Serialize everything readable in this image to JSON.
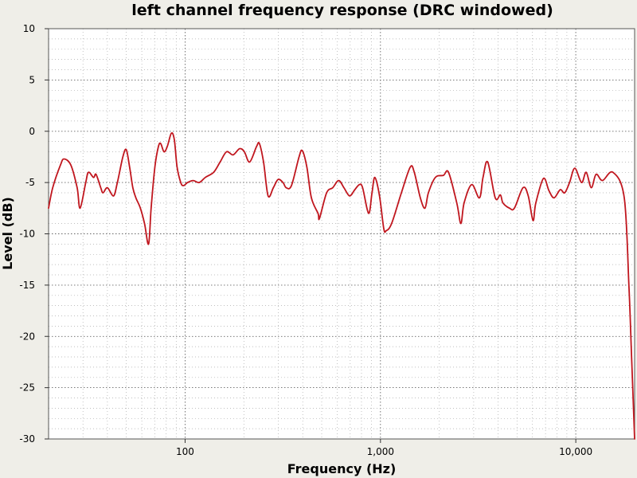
{
  "chart_data": {
    "type": "line",
    "title": "left channel frequency response (DRC windowed)",
    "xlabel": "Frequency (Hz)",
    "ylabel": "Level (dB)",
    "x_scale": "log",
    "xlim": [
      20,
      20000
    ],
    "ylim": [
      -30,
      10
    ],
    "grid": true,
    "x_ticks": [
      {
        "value": 100,
        "label": "100"
      },
      {
        "value": 1000,
        "label": "1,000"
      },
      {
        "value": 10000,
        "label": "10,000"
      }
    ],
    "y_ticks": [
      {
        "value": 10,
        "label": "10"
      },
      {
        "value": 5,
        "label": "5"
      },
      {
        "value": 0,
        "label": "0"
      },
      {
        "value": -5,
        "label": "-5"
      },
      {
        "value": -10,
        "label": "-10"
      },
      {
        "value": -15,
        "label": "-15"
      },
      {
        "value": -20,
        "label": "-20"
      },
      {
        "value": -25,
        "label": "-25"
      },
      {
        "value": -30,
        "label": "-30"
      }
    ],
    "series": [
      {
        "color": "#c0161e",
        "points": [
          [
            20,
            -7.5
          ],
          [
            21,
            -5.5
          ],
          [
            23,
            -3.3
          ],
          [
            24,
            -2.7
          ],
          [
            26,
            -3.3
          ],
          [
            28,
            -5.5
          ],
          [
            29,
            -7.5
          ],
          [
            31,
            -5
          ],
          [
            32,
            -4
          ],
          [
            34,
            -4.5
          ],
          [
            35,
            -4.2
          ],
          [
            37,
            -5.5
          ],
          [
            38,
            -6
          ],
          [
            40,
            -5.5
          ],
          [
            43,
            -6.3
          ],
          [
            45,
            -5
          ],
          [
            48,
            -2.5
          ],
          [
            50,
            -1.8
          ],
          [
            52,
            -3.5
          ],
          [
            54,
            -5.5
          ],
          [
            56,
            -6.5
          ],
          [
            59,
            -7.5
          ],
          [
            62,
            -9
          ],
          [
            65,
            -11
          ],
          [
            67,
            -7.5
          ],
          [
            70,
            -3.5
          ],
          [
            73,
            -1.5
          ],
          [
            75,
            -1.2
          ],
          [
            78,
            -2
          ],
          [
            81,
            -1.5
          ],
          [
            85,
            -0.2
          ],
          [
            88,
            -0.8
          ],
          [
            91,
            -3.5
          ],
          [
            95,
            -5
          ],
          [
            98,
            -5.3
          ],
          [
            103,
            -5
          ],
          [
            110,
            -4.8
          ],
          [
            118,
            -5
          ],
          [
            127,
            -4.5
          ],
          [
            140,
            -4
          ],
          [
            151,
            -3
          ],
          [
            163,
            -2
          ],
          [
            176,
            -2.3
          ],
          [
            190,
            -1.7
          ],
          [
            201,
            -2
          ],
          [
            214,
            -3
          ],
          [
            232,
            -1.5
          ],
          [
            240,
            -1.2
          ],
          [
            252,
            -3
          ],
          [
            266,
            -6.3
          ],
          [
            283,
            -5.5
          ],
          [
            299,
            -4.7
          ],
          [
            317,
            -5
          ],
          [
            329,
            -5.5
          ],
          [
            350,
            -5.3
          ],
          [
            383,
            -2.5
          ],
          [
            398,
            -1.9
          ],
          [
            420,
            -3.5
          ],
          [
            443,
            -6.5
          ],
          [
            479,
            -8
          ],
          [
            487,
            -8.5
          ],
          [
            530,
            -6
          ],
          [
            570,
            -5.5
          ],
          [
            611,
            -4.8
          ],
          [
            650,
            -5.5
          ],
          [
            695,
            -6.3
          ],
          [
            739,
            -5.7
          ],
          [
            780,
            -5.2
          ],
          [
            810,
            -5.5
          ],
          [
            870,
            -8
          ],
          [
            905,
            -6
          ],
          [
            936,
            -4.5
          ],
          [
            989,
            -6.3
          ],
          [
            1040,
            -9.5
          ],
          [
            1070,
            -9.7
          ],
          [
            1140,
            -9
          ],
          [
            1280,
            -6
          ],
          [
            1420,
            -3.5
          ],
          [
            1490,
            -4
          ],
          [
            1600,
            -6.5
          ],
          [
            1690,
            -7.5
          ],
          [
            1760,
            -6
          ],
          [
            1910,
            -4.5
          ],
          [
            2100,
            -4.3
          ],
          [
            2230,
            -4
          ],
          [
            2460,
            -7
          ],
          [
            2580,
            -9
          ],
          [
            2680,
            -7
          ],
          [
            2930,
            -5.2
          ],
          [
            3210,
            -6.5
          ],
          [
            3350,
            -4.5
          ],
          [
            3540,
            -3
          ],
          [
            3870,
            -6.5
          ],
          [
            4110,
            -6.2
          ],
          [
            4240,
            -7
          ],
          [
            4580,
            -7.5
          ],
          [
            4850,
            -7.5
          ],
          [
            5370,
            -5.5
          ],
          [
            5710,
            -6.3
          ],
          [
            6040,
            -8.7
          ],
          [
            6240,
            -7
          ],
          [
            6830,
            -4.6
          ],
          [
            7290,
            -5.8
          ],
          [
            7740,
            -6.5
          ],
          [
            8320,
            -5.7
          ],
          [
            8770,
            -6
          ],
          [
            9290,
            -5
          ],
          [
            9880,
            -3.6
          ],
          [
            10700,
            -5
          ],
          [
            11300,
            -4
          ],
          [
            12000,
            -5.5
          ],
          [
            12700,
            -4.2
          ],
          [
            13700,
            -4.8
          ],
          [
            15500,
            -4
          ],
          [
            17700,
            -6.5
          ],
          [
            18700,
            -15
          ],
          [
            19300,
            -22
          ],
          [
            20000,
            -30
          ]
        ]
      }
    ]
  }
}
